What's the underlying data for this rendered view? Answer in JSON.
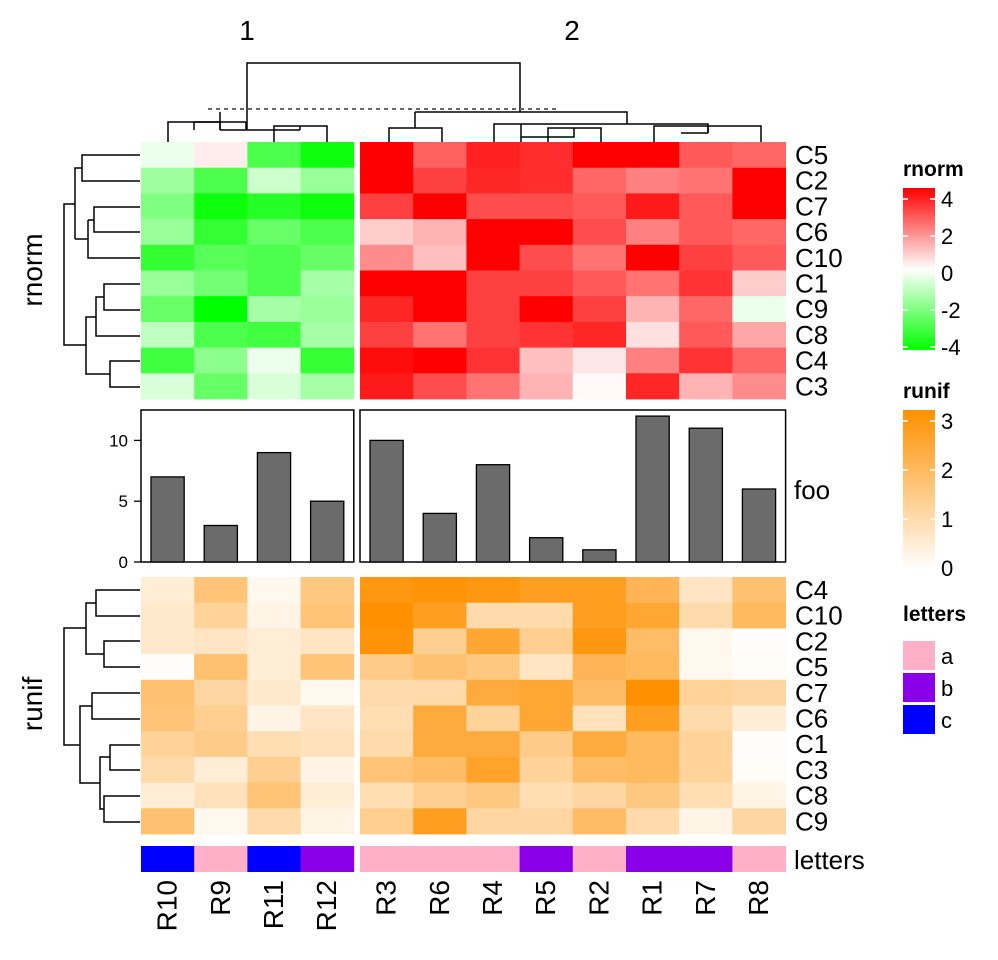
{
  "chart_data": {
    "type": "heatmap",
    "column_splits": [
      "1",
      "2"
    ],
    "columns": {
      "group1": [
        "R10",
        "R9",
        "R11",
        "R12"
      ],
      "group2": [
        "R3",
        "R6",
        "R4",
        "R5",
        "R2",
        "R1",
        "R7",
        "R8"
      ]
    },
    "rnorm": {
      "axis_label": "rnorm",
      "rows": [
        "C5",
        "C2",
        "C7",
        "C6",
        "C10",
        "C1",
        "C9",
        "C8",
        "C4",
        "C3"
      ],
      "values": [
        [
          -0.3,
          0.3,
          -2.8,
          -3.8,
          4.0,
          2.5,
          3.5,
          3.3,
          4.0,
          4.0,
          2.6,
          2.4
        ],
        [
          -1.5,
          -2.8,
          -0.8,
          -1.6,
          4.0,
          3.0,
          3.4,
          3.3,
          2.4,
          2.0,
          2.2,
          4.0
        ],
        [
          -2.0,
          -3.8,
          -3.4,
          -3.8,
          3.0,
          4.0,
          2.8,
          2.8,
          2.6,
          3.6,
          2.6,
          4.0
        ],
        [
          -1.6,
          -3.2,
          -2.4,
          -2.8,
          0.8,
          1.2,
          4.0,
          4.0,
          2.8,
          2.0,
          2.6,
          2.4
        ],
        [
          -3.2,
          -2.6,
          -2.8,
          -2.4,
          1.8,
          1.0,
          4.0,
          2.8,
          2.2,
          4.0,
          3.0,
          2.6
        ],
        [
          -1.6,
          -2.2,
          -2.8,
          -1.4,
          4.0,
          4.0,
          3.0,
          3.0,
          2.6,
          2.2,
          3.2,
          0.8
        ],
        [
          -2.4,
          -4.0,
          -1.4,
          -1.6,
          3.4,
          4.0,
          3.0,
          4.0,
          3.0,
          1.2,
          2.4,
          -0.3
        ],
        [
          -1.0,
          -2.8,
          -3.0,
          -1.4,
          3.0,
          2.2,
          3.0,
          3.2,
          3.4,
          0.5,
          2.6,
          1.4
        ],
        [
          -3.0,
          -1.8,
          -0.3,
          -3.2,
          3.8,
          4.0,
          3.2,
          1.0,
          0.4,
          2.0,
          3.2,
          2.4
        ],
        [
          -0.6,
          -2.4,
          -0.6,
          -1.4,
          3.6,
          2.8,
          2.2,
          1.2,
          0.1,
          3.4,
          1.2,
          1.8
        ]
      ],
      "legend": {
        "title": "rnorm",
        "ticks": [
          "4",
          "2",
          "0",
          "-2",
          "-4"
        ],
        "range": [
          -4,
          4
        ]
      }
    },
    "barplot": {
      "label": "foo",
      "values": [
        7,
        3,
        9,
        5,
        10,
        4,
        8,
        2,
        1,
        12,
        11,
        6
      ],
      "ticks": [
        "0",
        "5",
        "10"
      ],
      "ylim": [
        0,
        12.5
      ]
    },
    "runif": {
      "axis_label": "runif",
      "rows": [
        "C4",
        "C10",
        "C2",
        "C5",
        "C7",
        "C6",
        "C1",
        "C3",
        "C8",
        "C9"
      ],
      "values": [
        [
          0.5,
          1.6,
          0.2,
          1.5,
          2.8,
          2.9,
          2.8,
          2.6,
          2.6,
          2.0,
          0.7,
          1.7
        ],
        [
          0.6,
          1.2,
          0.3,
          1.6,
          3.0,
          2.6,
          1.0,
          1.0,
          2.6,
          2.4,
          1.0,
          1.9
        ],
        [
          0.6,
          0.7,
          0.5,
          0.7,
          2.9,
          1.3,
          2.4,
          1.3,
          2.8,
          1.8,
          0.2,
          0.05
        ],
        [
          0.05,
          1.7,
          0.5,
          1.6,
          1.4,
          1.7,
          1.5,
          0.7,
          2.0,
          1.9,
          0.2,
          0.1
        ],
        [
          1.7,
          1.1,
          0.6,
          0.2,
          1.0,
          1.0,
          2.3,
          2.4,
          1.8,
          3.0,
          1.2,
          1.1
        ],
        [
          1.6,
          1.3,
          0.3,
          0.7,
          0.9,
          2.3,
          1.2,
          2.4,
          0.8,
          2.6,
          1.0,
          0.5
        ],
        [
          1.2,
          1.4,
          0.9,
          0.8,
          1.0,
          2.3,
          2.3,
          1.4,
          2.3,
          1.9,
          1.2,
          0.05
        ],
        [
          1.0,
          0.5,
          1.3,
          0.3,
          1.6,
          1.8,
          2.5,
          1.2,
          1.8,
          1.9,
          1.2,
          0.1
        ],
        [
          0.5,
          0.8,
          1.6,
          0.5,
          0.9,
          1.3,
          1.5,
          0.9,
          1.1,
          1.5,
          0.9,
          0.3
        ],
        [
          1.7,
          0.2,
          1.0,
          0.3,
          1.3,
          2.6,
          1.1,
          1.1,
          1.8,
          1.0,
          0.3,
          1.1
        ]
      ],
      "legend": {
        "title": "runif",
        "ticks": [
          "3",
          "2",
          "1",
          "0"
        ],
        "range": [
          0,
          3
        ]
      }
    },
    "letters": {
      "label": "letters",
      "values": [
        "c",
        "a",
        "c",
        "b",
        "a",
        "a",
        "a",
        "b",
        "a",
        "b",
        "b",
        "a"
      ],
      "legend": {
        "title": "letters",
        "items": [
          {
            "label": "a",
            "color": "#FFB0C8"
          },
          {
            "label": "b",
            "color": "#8A00E8"
          },
          {
            "label": "c",
            "color": "#0000FF"
          }
        ]
      }
    },
    "colors": {
      "rnorm_low": "#00FF00",
      "rnorm_mid": "#FFFFFF",
      "rnorm_high": "#FF0000",
      "runif_low": "#FFFFFF",
      "runif_high": "#FF9000",
      "bar": "#6B6B6B"
    }
  }
}
